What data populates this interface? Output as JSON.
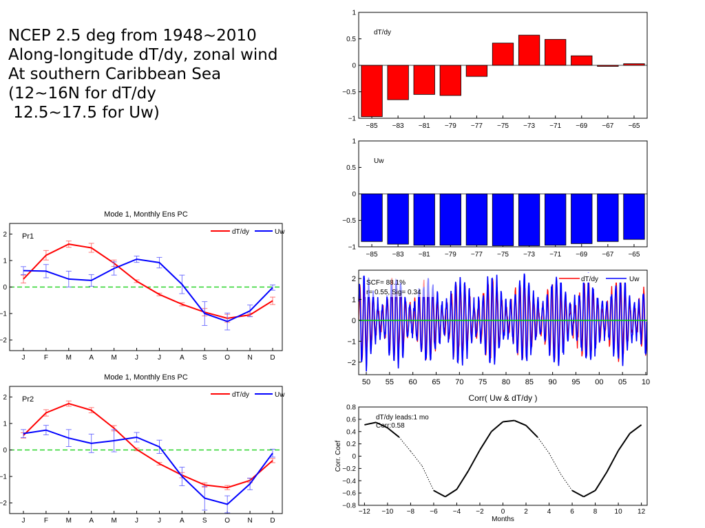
{
  "slide": {
    "lines": [
      "NCEP 2.5 deg from 1948~2010",
      "",
      "Along-longitude dT/dy, zonal wind",
      "At southern Caribbean Sea",
      "(12~16N for dT/dy",
      " 12.5~17.5 for Uw)"
    ]
  },
  "colors": {
    "dTdy": "#ff0000",
    "Uw": "#0000ff",
    "zero_line": "#00cc00",
    "corr": "#000000"
  },
  "chart_data": [
    {
      "id": "pr1",
      "type": "line",
      "title": "Mode 1, Monthly Ens PC",
      "panel_label": "Pr1",
      "categories": [
        "J",
        "F",
        "M",
        "A",
        "M",
        "J",
        "J",
        "A",
        "S",
        "O",
        "N",
        "D"
      ],
      "series": [
        {
          "name": "dT/dy",
          "values": [
            0.3,
            1.2,
            1.62,
            1.48,
            0.9,
            0.22,
            -0.28,
            -0.65,
            -0.95,
            -1.18,
            -1.05,
            -0.52
          ],
          "errors": [
            0.15,
            0.18,
            0.12,
            0.17,
            0.12,
            0.05,
            0.05,
            0.06,
            0.14,
            0.15,
            0.06,
            0.14
          ]
        },
        {
          "name": "Uw",
          "values": [
            0.62,
            0.6,
            0.3,
            0.25,
            0.7,
            1.05,
            0.92,
            0.1,
            -1.0,
            -1.3,
            -0.9,
            -0.02
          ],
          "errors": [
            0.15,
            0.25,
            0.3,
            0.22,
            0.25,
            0.12,
            0.2,
            0.35,
            0.45,
            0.32,
            0.22,
            0.1
          ]
        }
      ],
      "ylim": [
        -2.4,
        2.4
      ],
      "yticks": [
        -2,
        -1,
        0,
        1,
        2
      ],
      "legend": "top-right"
    },
    {
      "id": "pr2",
      "type": "line",
      "title": "Mode 1, Monthly Ens PC",
      "panel_label": "Pr2",
      "categories": [
        "J",
        "F",
        "M",
        "A",
        "M",
        "J",
        "J",
        "A",
        "S",
        "O",
        "N",
        "D"
      ],
      "series": [
        {
          "name": "dT/dy",
          "values": [
            0.55,
            1.4,
            1.75,
            1.5,
            0.82,
            0.02,
            -0.52,
            -0.95,
            -1.32,
            -1.42,
            -1.15,
            -0.4
          ],
          "errors": [
            0.1,
            0.12,
            0.1,
            0.1,
            0.1,
            0.05,
            0.05,
            0.1,
            0.08,
            0.08,
            0.08,
            0.08
          ]
        },
        {
          "name": "Uw",
          "values": [
            0.62,
            0.75,
            0.45,
            0.25,
            0.35,
            0.48,
            0.12,
            -1.0,
            -1.82,
            -2.05,
            -1.28,
            -0.12
          ],
          "errors": [
            0.15,
            0.18,
            0.32,
            0.35,
            0.42,
            0.18,
            0.25,
            0.35,
            0.45,
            0.32,
            0.22,
            0.15
          ]
        }
      ],
      "ylim": [
        -2.4,
        2.4
      ],
      "yticks": [
        -2,
        -1,
        0,
        1,
        2
      ],
      "legend": "top-right"
    },
    {
      "id": "dtdy_bars",
      "type": "bar",
      "label": "dT/dy",
      "x": [
        -85,
        -83,
        -81,
        -79,
        -77,
        -75,
        -73,
        -71,
        -69,
        -67,
        -65
      ],
      "values": [
        -0.97,
        -0.65,
        -0.55,
        -0.57,
        -0.21,
        0.42,
        0.57,
        0.49,
        0.18,
        -0.02,
        0.03
      ],
      "xticks": [
        -85,
        -83,
        -81,
        -79,
        -77,
        -75,
        -73,
        -71,
        -69,
        -67,
        -65
      ],
      "yticks": [
        -1,
        -0.5,
        0,
        0.5,
        1
      ],
      "ylim": [
        -1,
        1
      ]
    },
    {
      "id": "uw_bars",
      "type": "bar",
      "label": "Uw",
      "x": [
        -85,
        -83,
        -81,
        -79,
        -77,
        -75,
        -73,
        -71,
        -69,
        -67,
        -65
      ],
      "values": [
        -0.9,
        -0.95,
        -0.97,
        -0.97,
        -0.97,
        -0.98,
        -0.98,
        -0.97,
        -0.94,
        -0.9,
        -0.86
      ],
      "xticks": [
        -85,
        -83,
        -81,
        -79,
        -77,
        -75,
        -73,
        -71,
        -69,
        -67,
        -65
      ],
      "yticks": [
        -1,
        -0.5,
        0,
        0.5,
        1
      ],
      "ylim": [
        -1,
        1
      ]
    },
    {
      "id": "timeseries",
      "type": "line",
      "legend_entries": [
        "dT/dy",
        "Uw"
      ],
      "annotations": [
        "SCF= 88.1%",
        "r= 0.55, Sig= 0.34"
      ],
      "xticks": [
        "50",
        "55",
        "60",
        "65",
        "70",
        "75",
        "80",
        "85",
        "90",
        "95",
        "00",
        "05",
        "10"
      ],
      "xlim": [
        1948,
        2011
      ],
      "yticks": [
        -2,
        -1,
        0,
        1,
        2
      ],
      "ylim": [
        -2.6,
        2.4
      ],
      "series": [
        {
          "name": "dT/dy",
          "amplitude": 1.7
        },
        {
          "name": "Uw",
          "amplitude": 1.9
        }
      ]
    },
    {
      "id": "corr",
      "type": "line",
      "title": "Corr( Uw & dT/dy )",
      "xlabel": "Months",
      "ylabel": "Corr. Coef",
      "annotations": [
        "dT/dy leads:1 mo",
        "Corr:0.58"
      ],
      "x": [
        -12,
        -11,
        -10,
        -9,
        -8,
        -7,
        -6,
        -5,
        -4,
        -3,
        -2,
        -1,
        0,
        1,
        2,
        3,
        4,
        5,
        6,
        7,
        8,
        9,
        10,
        11,
        12
      ],
      "values": [
        0.51,
        0.55,
        0.46,
        0.31,
        0.08,
        -0.16,
        -0.56,
        -0.66,
        -0.54,
        -0.24,
        0.1,
        0.4,
        0.56,
        0.58,
        0.5,
        0.31,
        0.05,
        -0.29,
        -0.56,
        -0.66,
        -0.56,
        -0.26,
        0.09,
        0.37,
        0.51
      ],
      "significant": [
        true,
        true,
        true,
        true,
        false,
        false,
        true,
        true,
        true,
        true,
        true,
        true,
        true,
        true,
        true,
        true,
        false,
        false,
        true,
        true,
        true,
        true,
        true,
        true,
        true
      ],
      "xticks": [
        -12,
        -10,
        -8,
        -6,
        -4,
        -2,
        0,
        2,
        4,
        6,
        8,
        10,
        12
      ],
      "yticks": [
        -0.8,
        -0.6,
        -0.4,
        -0.2,
        0,
        0.2,
        0.4,
        0.6,
        0.8
      ],
      "xlim": [
        -12.5,
        12.5
      ],
      "ylim": [
        -0.8,
        0.8
      ]
    }
  ]
}
